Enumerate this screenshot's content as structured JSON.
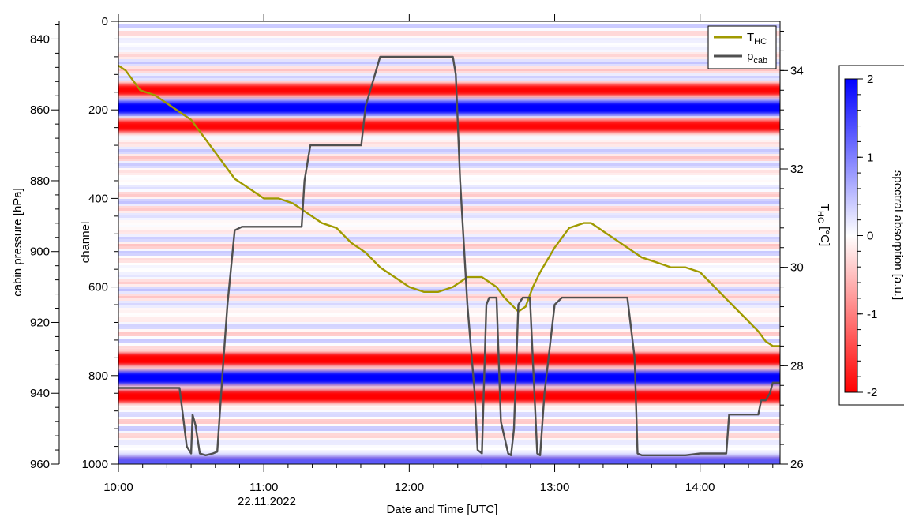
{
  "chart_data": {
    "type": "heatmap",
    "xlabel": "Date and Time [UTC]",
    "x_date_label": "22.11.2022",
    "x_ticks": [
      "10:00",
      "11:00",
      "12:00",
      "13:00",
      "14:00"
    ],
    "x_range_hours": [
      10.0,
      14.55
    ],
    "axes": {
      "pressure": {
        "label": "cabin pressure [hPa]",
        "range": [
          960,
          835
        ],
        "ticks": [
          "840",
          "860",
          "880",
          "900",
          "920",
          "940",
          "960"
        ],
        "tick_values": [
          840,
          860,
          880,
          900,
          920,
          940,
          960
        ]
      },
      "channel": {
        "label": "channel",
        "range": [
          1000,
          0
        ],
        "ticks": [
          "0",
          "200",
          "400",
          "600",
          "800",
          "1000"
        ],
        "tick_values": [
          0,
          200,
          400,
          600,
          800,
          1000
        ]
      },
      "temperature": {
        "label_main": "T",
        "label_sub": "HC",
        "label_unit": " [°C]",
        "range": [
          26,
          35
        ],
        "ticks": [
          "26",
          "28",
          "30",
          "32",
          "34"
        ],
        "tick_values": [
          26,
          28,
          30,
          32,
          34
        ]
      }
    },
    "colorbar": {
      "label": "spectral absorption [a.u.]",
      "range": [
        -2,
        2
      ],
      "ticks": [
        "-2",
        "-1",
        "0",
        "1",
        "2"
      ],
      "tick_values": [
        -2,
        -1,
        0,
        1,
        2
      ],
      "colors": {
        "negative": "#ff0000",
        "zero": "#ffffff",
        "positive": "#0000ff"
      }
    },
    "heatmap_bands": [
      {
        "channel_center": 155,
        "sign": "negative",
        "intensity": 1.6
      },
      {
        "channel_center": 195,
        "sign": "positive",
        "intensity": 2.0
      },
      {
        "channel_center": 237,
        "sign": "negative",
        "intensity": 1.6
      },
      {
        "channel_center": 763,
        "sign": "negative",
        "intensity": 1.9
      },
      {
        "channel_center": 805,
        "sign": "positive",
        "intensity": 2.0
      },
      {
        "channel_center": 847,
        "sign": "negative",
        "intensity": 1.9
      },
      {
        "channel_center": 993,
        "sign": "positive",
        "intensity": 0.6
      }
    ],
    "series": [
      {
        "name_main": "T",
        "name_sub": "HC",
        "axis": "temperature",
        "color": "#a09a00",
        "x": [
          10.0,
          10.05,
          10.1,
          10.15,
          10.25,
          10.35,
          10.5,
          10.6,
          10.7,
          10.8,
          10.9,
          11.0,
          11.1,
          11.2,
          11.3,
          11.4,
          11.5,
          11.6,
          11.7,
          11.8,
          11.9,
          12.0,
          12.1,
          12.2,
          12.3,
          12.4,
          12.5,
          12.6,
          12.65,
          12.75,
          12.8,
          12.85,
          12.9,
          13.0,
          13.1,
          13.2,
          13.25,
          13.3,
          13.4,
          13.5,
          13.6,
          13.7,
          13.8,
          13.9,
          14.0,
          14.1,
          14.2,
          14.3,
          14.4,
          14.45,
          14.5,
          14.55
        ],
        "values": [
          34.1,
          34.0,
          33.8,
          33.6,
          33.5,
          33.3,
          33.0,
          32.6,
          32.2,
          31.8,
          31.6,
          31.4,
          31.4,
          31.3,
          31.1,
          30.9,
          30.8,
          30.5,
          30.3,
          30.0,
          29.8,
          29.6,
          29.5,
          29.5,
          29.6,
          29.8,
          29.8,
          29.6,
          29.4,
          29.1,
          29.2,
          29.6,
          29.9,
          30.4,
          30.8,
          30.9,
          30.9,
          30.8,
          30.6,
          30.4,
          30.2,
          30.1,
          30.0,
          30.0,
          29.9,
          29.6,
          29.3,
          29.0,
          28.7,
          28.5,
          28.4,
          28.4
        ]
      },
      {
        "name_main": "p",
        "name_sub": "cab",
        "axis": "pressure",
        "color": "#505050",
        "x": [
          10.0,
          10.42,
          10.47,
          10.5,
          10.51,
          10.53,
          10.56,
          10.6,
          10.65,
          10.68,
          10.72,
          10.75,
          10.8,
          10.85,
          10.9,
          11.0,
          11.1,
          11.2,
          11.26,
          11.28,
          11.32,
          11.4,
          11.5,
          11.6,
          11.67,
          11.7,
          11.75,
          11.8,
          11.9,
          12.0,
          12.1,
          12.2,
          12.3,
          12.32,
          12.35,
          12.4,
          12.45,
          12.47,
          12.5,
          12.53,
          12.55,
          12.6,
          12.63,
          12.68,
          12.7,
          12.72,
          12.75,
          12.78,
          12.83,
          12.88,
          12.9,
          12.93,
          13.0,
          13.05,
          13.1,
          13.2,
          13.3,
          13.4,
          13.5,
          13.55,
          13.57,
          13.6,
          13.7,
          13.8,
          13.9,
          14.0,
          14.1,
          14.18,
          14.2,
          14.22,
          14.25,
          14.3,
          14.38,
          14.4,
          14.42,
          14.45,
          14.48,
          14.5,
          14.55
        ],
        "values": [
          938.5,
          938.5,
          955,
          957,
          946,
          949,
          957,
          957.5,
          957,
          956.5,
          932,
          915,
          894,
          893,
          893,
          893,
          893,
          893,
          893,
          880,
          870,
          870,
          870,
          870,
          870,
          859,
          852,
          845,
          845,
          845,
          845,
          845,
          845,
          850,
          880,
          915,
          940,
          956,
          957,
          915,
          913,
          913,
          948,
          957,
          957.5,
          950,
          915,
          913,
          913,
          957,
          957.5,
          940,
          915,
          913,
          913,
          913,
          913,
          913,
          913,
          930,
          957,
          957.5,
          957.5,
          957.5,
          957.5,
          957,
          957,
          957,
          946,
          946,
          946,
          946,
          946,
          946,
          942,
          942,
          940,
          937,
          937
        ]
      }
    ]
  }
}
